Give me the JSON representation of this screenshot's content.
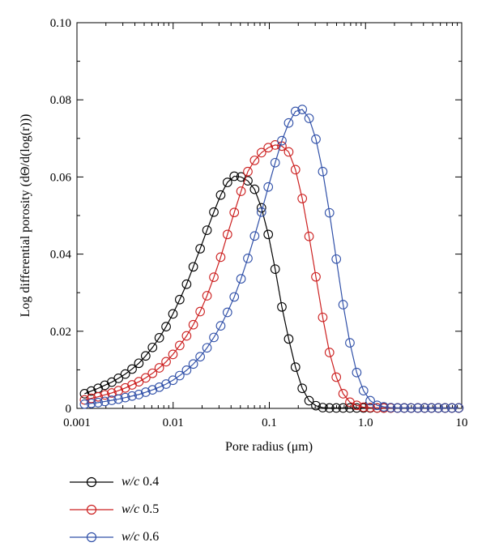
{
  "chart_data": {
    "type": "line",
    "title": "",
    "xlabel": "Pore radius (μm)",
    "ylabel": "Log differential porosity (dΘ/d(log(r)))",
    "x_scale": "log",
    "xlim": [
      0.001,
      10
    ],
    "ylim": [
      0,
      0.1
    ],
    "x_ticks": [
      {
        "value": 0.001,
        "label": "0.001"
      },
      {
        "value": 0.01,
        "label": "0.01"
      },
      {
        "value": 0.1,
        "label": "0.1"
      },
      {
        "value": 1,
        "label": "1.0"
      },
      {
        "value": 10,
        "label": "10"
      }
    ],
    "y_ticks": [
      {
        "value": 0,
        "label": "0"
      },
      {
        "value": 0.02,
        "label": "0.02"
      },
      {
        "value": 0.04,
        "label": "0.04"
      },
      {
        "value": 0.06,
        "label": "0.06"
      },
      {
        "value": 0.08,
        "label": "0.08"
      },
      {
        "value": 0.1,
        "label": "0.10"
      }
    ],
    "grid": false,
    "legend_position": "below",
    "series": [
      {
        "name": "w/c 0.4",
        "name_italic": "w/c",
        "name_value": "0.4",
        "color": "#000000",
        "x": [
          0.0012,
          0.00141,
          0.00166,
          0.00195,
          0.0023,
          0.0027,
          0.00318,
          0.00374,
          0.0044,
          0.00518,
          0.0061,
          0.00718,
          0.00845,
          0.00995,
          0.0117,
          0.0138,
          0.0162,
          0.0191,
          0.0225,
          0.0265,
          0.0312,
          0.0367,
          0.0432,
          0.0508,
          0.0598,
          0.0703,
          0.0828,
          0.0975,
          0.115,
          0.135,
          0.159,
          0.187,
          0.22,
          0.259,
          0.305,
          0.359,
          0.422,
          0.497,
          0.585,
          0.688,
          0.81,
          0.953,
          1.12,
          1.32,
          1.55,
          1.83,
          2.15,
          2.53,
          2.98,
          3.5,
          4.12,
          4.85,
          5.71,
          6.72,
          7.91,
          9.31
        ],
        "values": [
          0.0038,
          0.0045,
          0.0052,
          0.006,
          0.0068,
          0.0078,
          0.0089,
          0.0102,
          0.0117,
          0.0136,
          0.0158,
          0.0183,
          0.0212,
          0.0245,
          0.0282,
          0.0322,
          0.0367,
          0.0414,
          0.0462,
          0.0509,
          0.0553,
          0.0586,
          0.0602,
          0.06,
          0.059,
          0.0568,
          0.052,
          0.0451,
          0.0361,
          0.0263,
          0.018,
          0.0107,
          0.0052,
          0.002,
          0.0007,
          0.0002,
          0.0001,
          0.0001,
          0.0001,
          0.0001,
          0.0001,
          0.0001,
          0.0001,
          0.0001,
          0.0001,
          0.0001,
          0.0001,
          0.0001,
          0.0001,
          0.0001,
          0.0001,
          0.0001,
          0.0001,
          0.0001,
          0.0001,
          0.0001
        ]
      },
      {
        "name": "w/c 0.5",
        "name_italic": "w/c",
        "name_value": "0.5",
        "color": "#cc2020",
        "x": [
          0.0012,
          0.00141,
          0.00166,
          0.00195,
          0.0023,
          0.0027,
          0.00318,
          0.00374,
          0.0044,
          0.00518,
          0.0061,
          0.00718,
          0.00845,
          0.00995,
          0.0117,
          0.0138,
          0.0162,
          0.0191,
          0.0225,
          0.0265,
          0.0312,
          0.0367,
          0.0432,
          0.0508,
          0.0598,
          0.0703,
          0.0828,
          0.0975,
          0.115,
          0.135,
          0.159,
          0.187,
          0.22,
          0.259,
          0.305,
          0.359,
          0.422,
          0.497,
          0.585,
          0.688,
          0.81,
          0.953,
          1.12,
          1.32,
          1.55,
          1.83,
          2.15,
          2.53,
          2.98,
          3.5,
          4.12,
          4.85,
          5.71,
          6.72,
          7.91,
          9.31
        ],
        "values": [
          0.0022,
          0.0026,
          0.003,
          0.0035,
          0.004,
          0.0046,
          0.0053,
          0.0061,
          0.0069,
          0.0079,
          0.0091,
          0.0105,
          0.0121,
          0.014,
          0.0163,
          0.0188,
          0.0217,
          0.0251,
          0.0292,
          0.034,
          0.0392,
          0.0451,
          0.0508,
          0.0563,
          0.0614,
          0.0643,
          0.0663,
          0.0676,
          0.0683,
          0.068,
          0.0665,
          0.0619,
          0.0544,
          0.0446,
          0.0341,
          0.0236,
          0.0145,
          0.0081,
          0.0038,
          0.0016,
          0.0008,
          0.0003,
          0.0002,
          0.0001,
          0.0001,
          0.0001,
          0.0001,
          0.0001,
          0.0001,
          0.0001,
          0.0001,
          0.0001,
          0.0001,
          0.0001,
          0.0001,
          0.0001
        ]
      },
      {
        "name": "w/c 0.6",
        "name_italic": "w/c",
        "name_value": "0.6",
        "color": "#3050a8",
        "x": [
          0.0012,
          0.00141,
          0.00166,
          0.00195,
          0.0023,
          0.0027,
          0.00318,
          0.00374,
          0.0044,
          0.00518,
          0.0061,
          0.00718,
          0.00845,
          0.00995,
          0.0117,
          0.0138,
          0.0162,
          0.0191,
          0.0225,
          0.0265,
          0.0312,
          0.0367,
          0.0432,
          0.0508,
          0.0598,
          0.0703,
          0.0828,
          0.0975,
          0.115,
          0.135,
          0.159,
          0.187,
          0.22,
          0.259,
          0.305,
          0.359,
          0.422,
          0.497,
          0.585,
          0.688,
          0.81,
          0.953,
          1.12,
          1.32,
          1.55,
          1.83,
          2.15,
          2.53,
          2.98,
          3.5,
          4.12,
          4.85,
          5.71,
          6.72,
          7.91,
          9.31
        ],
        "values": [
          0.0011,
          0.0013,
          0.0015,
          0.0018,
          0.0021,
          0.0024,
          0.0028,
          0.0032,
          0.0036,
          0.0042,
          0.0048,
          0.0055,
          0.0063,
          0.0073,
          0.0085,
          0.0099,
          0.0115,
          0.0134,
          0.0157,
          0.0184,
          0.0214,
          0.0249,
          0.0289,
          0.0336,
          0.0389,
          0.0447,
          0.0509,
          0.0574,
          0.0637,
          0.0694,
          0.074,
          0.077,
          0.0775,
          0.0752,
          0.0698,
          0.0614,
          0.0507,
          0.0387,
          0.0269,
          0.017,
          0.0093,
          0.0046,
          0.002,
          0.0008,
          0.0004,
          0.0002,
          0.0001,
          0.0001,
          0.0001,
          0.0001,
          0.0001,
          0.0001,
          0.0001,
          0.0001,
          0.0001,
          0.0001
        ]
      }
    ]
  }
}
